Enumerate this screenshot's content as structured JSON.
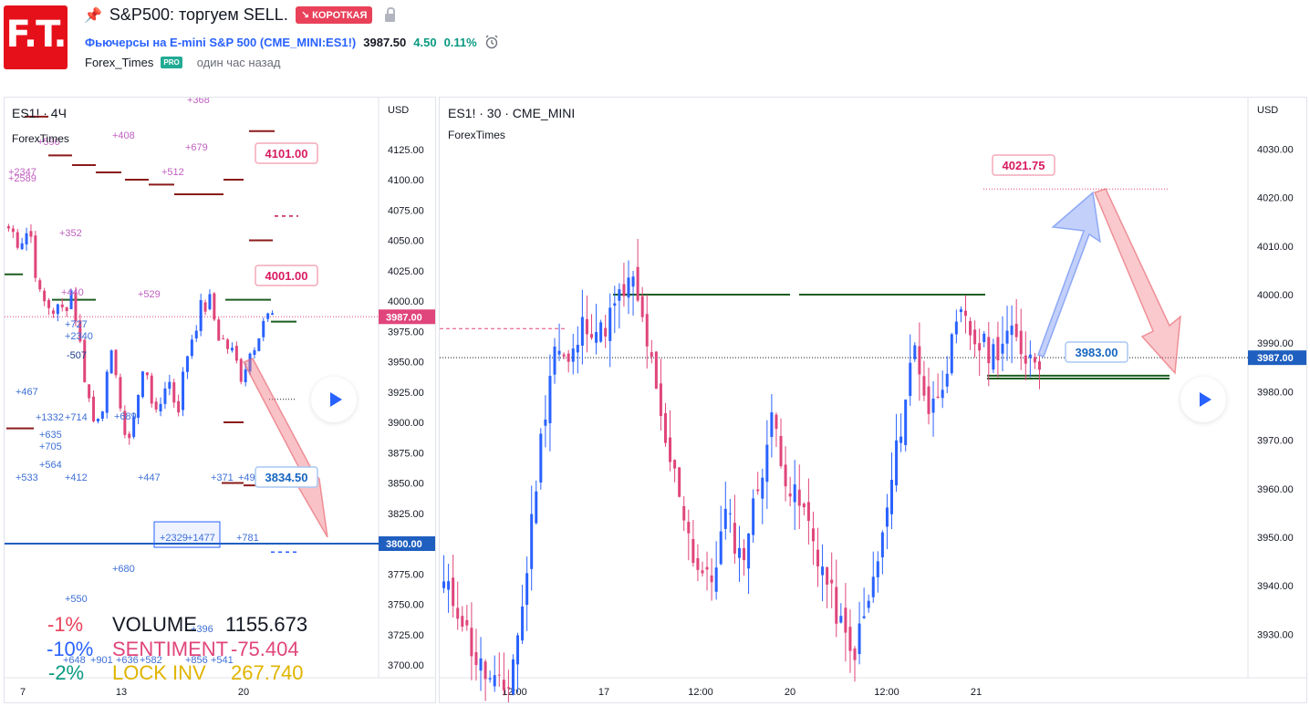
{
  "header": {
    "logo_text": "F.T.",
    "title": "S&P500: торгуем SELL.",
    "badge": "↘ КОРОТКАЯ",
    "symbol_name": "Фьючерсы на E-mini S&P 500",
    "symbol_code": "(CME_MINI:ES1!)",
    "last_price": "3987.50",
    "change": "4.50",
    "change_pct": "0.11%",
    "author": "Forex_Times",
    "author_badge": "PRO",
    "published": "один час назад"
  },
  "left_chart": {
    "symbol": "ES1! · 4Ч",
    "source": "ForexTimes",
    "currency": "USD",
    "price_ticks": [
      "4125.00",
      "4100.00",
      "4075.00",
      "4050.00",
      "4025.00",
      "4000.00",
      "3975.00",
      "3950.00",
      "3925.00",
      "3900.00",
      "3875.00",
      "3850.00",
      "3825.00",
      "3800.00",
      "3775.00",
      "3750.00",
      "3725.00",
      "3700.00"
    ],
    "current_price_tag": "3987.00",
    "level_tag": "3800.00",
    "callouts": [
      "4101.00",
      "4001.00",
      "3834.50"
    ],
    "time_ticks": [
      "7",
      "13",
      "20"
    ],
    "annotations": [
      "+368",
      "+590",
      "+408",
      "+679",
      "+512",
      "+2347",
      "+2589",
      "+352",
      "+529",
      "+440",
      "+727",
      "+2340",
      "-507",
      "+467",
      "+1332",
      "+714",
      "+689",
      "+635",
      "+705",
      "+564",
      "+533",
      "+412",
      "+447",
      "+371",
      "+49",
      "+2329",
      "+1477",
      "+781",
      "+680",
      "+550",
      "+396",
      "+648",
      "+901",
      "+636",
      "+582",
      "+856",
      "+541"
    ],
    "stats": {
      "pct1": "-1%",
      "pct2": "-10%",
      "pct3": "-2%",
      "volume_label": "VOLUME",
      "volume_value": "1155.673",
      "sentiment_label": "SENTIMENT",
      "sentiment_value": "-75.404",
      "lock_label": "LOCK INV",
      "lock_value": "267.740"
    }
  },
  "right_chart": {
    "symbol": "ES1! · 30 · CME_MINI",
    "source": "ForexTimes",
    "currency": "USD",
    "price_ticks": [
      "4030.00",
      "4020.00",
      "4010.00",
      "4000.00",
      "3990.00",
      "3980.00",
      "3970.00",
      "3960.00",
      "3950.00",
      "3940.00",
      "3930.00"
    ],
    "current_price_tag": "3987.00",
    "callouts": [
      "4021.75",
      "3983.00"
    ],
    "time_ticks": [
      "12:00",
      "17",
      "12:00",
      "20",
      "12:00",
      "21"
    ]
  },
  "colors": {
    "up": "#2962ff",
    "down": "#e0457b",
    "sell_red": "#e9415a",
    "green_line": "#1b5e20",
    "maroon": "#8b1a1a",
    "axis_text": "#131722",
    "pro_green": "#22ab94"
  }
}
